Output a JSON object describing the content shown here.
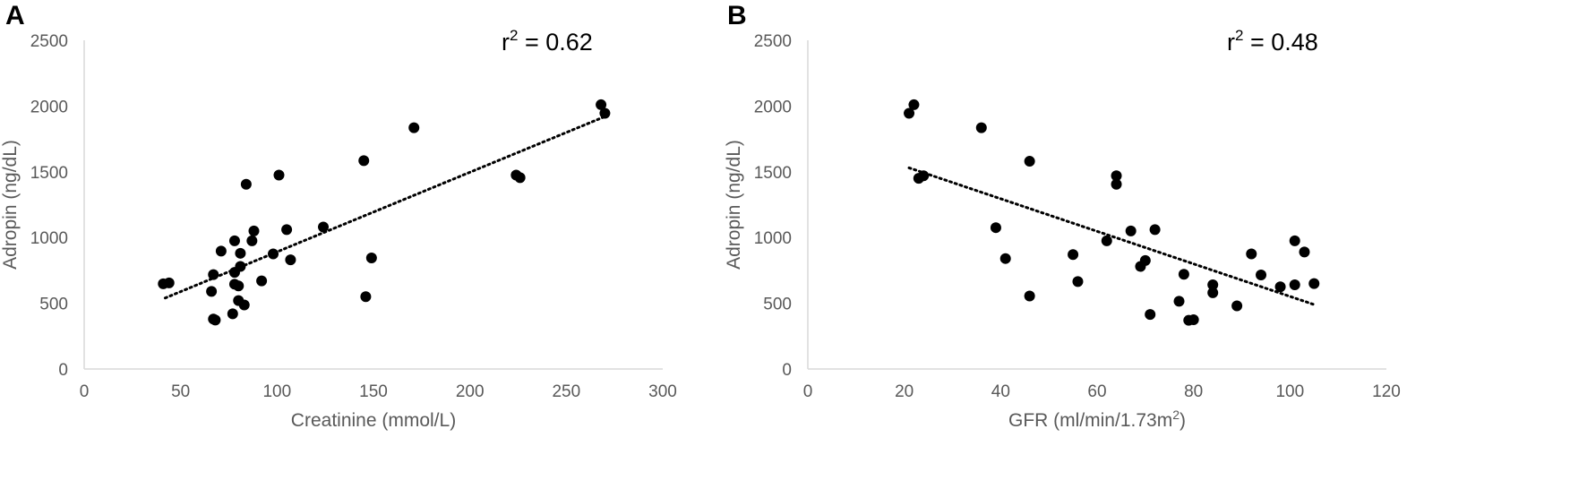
{
  "chart_data": [
    {
      "type": "scatter",
      "panel_label": "A",
      "annotation": {
        "lhs": "r",
        "sup": "2",
        "rhs": " = 0.62"
      },
      "xlabel": {
        "text": "Creatinine (mmol/L)",
        "sup": "",
        "after": ""
      },
      "ylabel": "Adropin (ng/dL)",
      "xlim": [
        0,
        300
      ],
      "ylim": [
        0,
        2500
      ],
      "xticks": [
        0,
        50,
        100,
        150,
        200,
        250,
        300
      ],
      "yticks": [
        0,
        500,
        1000,
        1500,
        2000,
        2500
      ],
      "grid": false,
      "trendline": {
        "style": "dotted",
        "x": [
          42,
          270
        ],
        "y": [
          540,
          1920
        ]
      },
      "points": [
        [
          41,
          648
        ],
        [
          44,
          655
        ],
        [
          66,
          590
        ],
        [
          67,
          718
        ],
        [
          67,
          380
        ],
        [
          68,
          372
        ],
        [
          71,
          897
        ],
        [
          77,
          420
        ],
        [
          78,
          975
        ],
        [
          78,
          735
        ],
        [
          78,
          645
        ],
        [
          80,
          632
        ],
        [
          80,
          520
        ],
        [
          81,
          780
        ],
        [
          81,
          880
        ],
        [
          83,
          487
        ],
        [
          84,
          1405
        ],
        [
          87,
          975
        ],
        [
          88,
          1050
        ],
        [
          92,
          670
        ],
        [
          98,
          875
        ],
        [
          101,
          1475
        ],
        [
          105,
          1060
        ],
        [
          107,
          830
        ],
        [
          124,
          1080
        ],
        [
          145,
          1585
        ],
        [
          146,
          550
        ],
        [
          149,
          845
        ],
        [
          171,
          1835
        ],
        [
          224,
          1475
        ],
        [
          226,
          1455
        ],
        [
          268,
          2010
        ],
        [
          270,
          1945
        ]
      ]
    },
    {
      "type": "scatter",
      "panel_label": "B",
      "annotation": {
        "lhs": "r",
        "sup": "2",
        "rhs": " = 0.48"
      },
      "xlabel": {
        "text": "GFR (ml/min/1.73m",
        "sup": "2",
        "after": ")"
      },
      "ylabel": "Adropin (ng/dL)",
      "xlim": [
        0,
        120
      ],
      "ylim": [
        0,
        2500
      ],
      "xticks": [
        0,
        20,
        40,
        60,
        80,
        100,
        120
      ],
      "yticks": [
        0,
        500,
        1000,
        1500,
        2000,
        2500
      ],
      "grid": false,
      "trendline": {
        "style": "dotted",
        "x": [
          21,
          105
        ],
        "y": [
          1530,
          490
        ]
      },
      "points": [
        [
          21,
          1945
        ],
        [
          22,
          2010
        ],
        [
          23,
          1450
        ],
        [
          24,
          1470
        ],
        [
          36,
          1835
        ],
        [
          39,
          1075
        ],
        [
          41,
          840
        ],
        [
          46,
          1580
        ],
        [
          46,
          555
        ],
        [
          55,
          870
        ],
        [
          56,
          665
        ],
        [
          62,
          975
        ],
        [
          64,
          1470
        ],
        [
          64,
          1405
        ],
        [
          67,
          1050
        ],
        [
          69,
          780
        ],
        [
          70,
          825
        ],
        [
          71,
          415
        ],
        [
          72,
          1060
        ],
        [
          77,
          515
        ],
        [
          78,
          720
        ],
        [
          79,
          370
        ],
        [
          80,
          375
        ],
        [
          84,
          640
        ],
        [
          84,
          580
        ],
        [
          89,
          480
        ],
        [
          92,
          875
        ],
        [
          94,
          715
        ],
        [
          98,
          625
        ],
        [
          101,
          975
        ],
        [
          101,
          640
        ],
        [
          103,
          890
        ],
        [
          105,
          650
        ]
      ]
    }
  ]
}
